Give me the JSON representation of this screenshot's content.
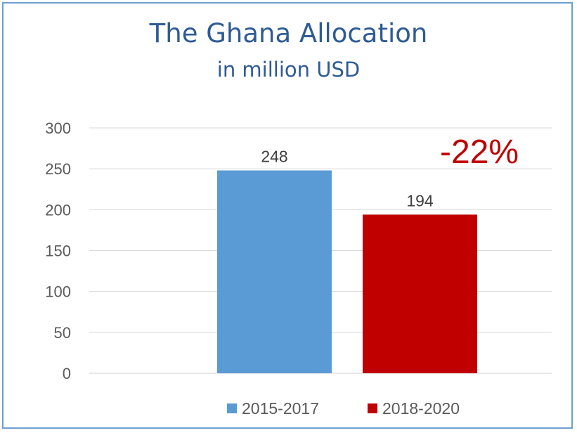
{
  "chart_data": {
    "type": "bar",
    "title": "The Ghana Allocation",
    "subtitle": "in million USD",
    "categories": [
      "2015-2017",
      "2018-2020"
    ],
    "values": [
      248,
      194
    ],
    "series": [
      {
        "name": "2015-2017",
        "value": 248,
        "color": "#5b9bd5"
      },
      {
        "name": "2018-2020",
        "value": 194,
        "color": "#c00000"
      }
    ],
    "ylim": [
      0,
      300
    ],
    "yticks": [
      0,
      50,
      100,
      150,
      200,
      250,
      300
    ],
    "grid": true,
    "legend": "bottom",
    "annotation": "-22%",
    "annotation_color": "#c00000"
  }
}
